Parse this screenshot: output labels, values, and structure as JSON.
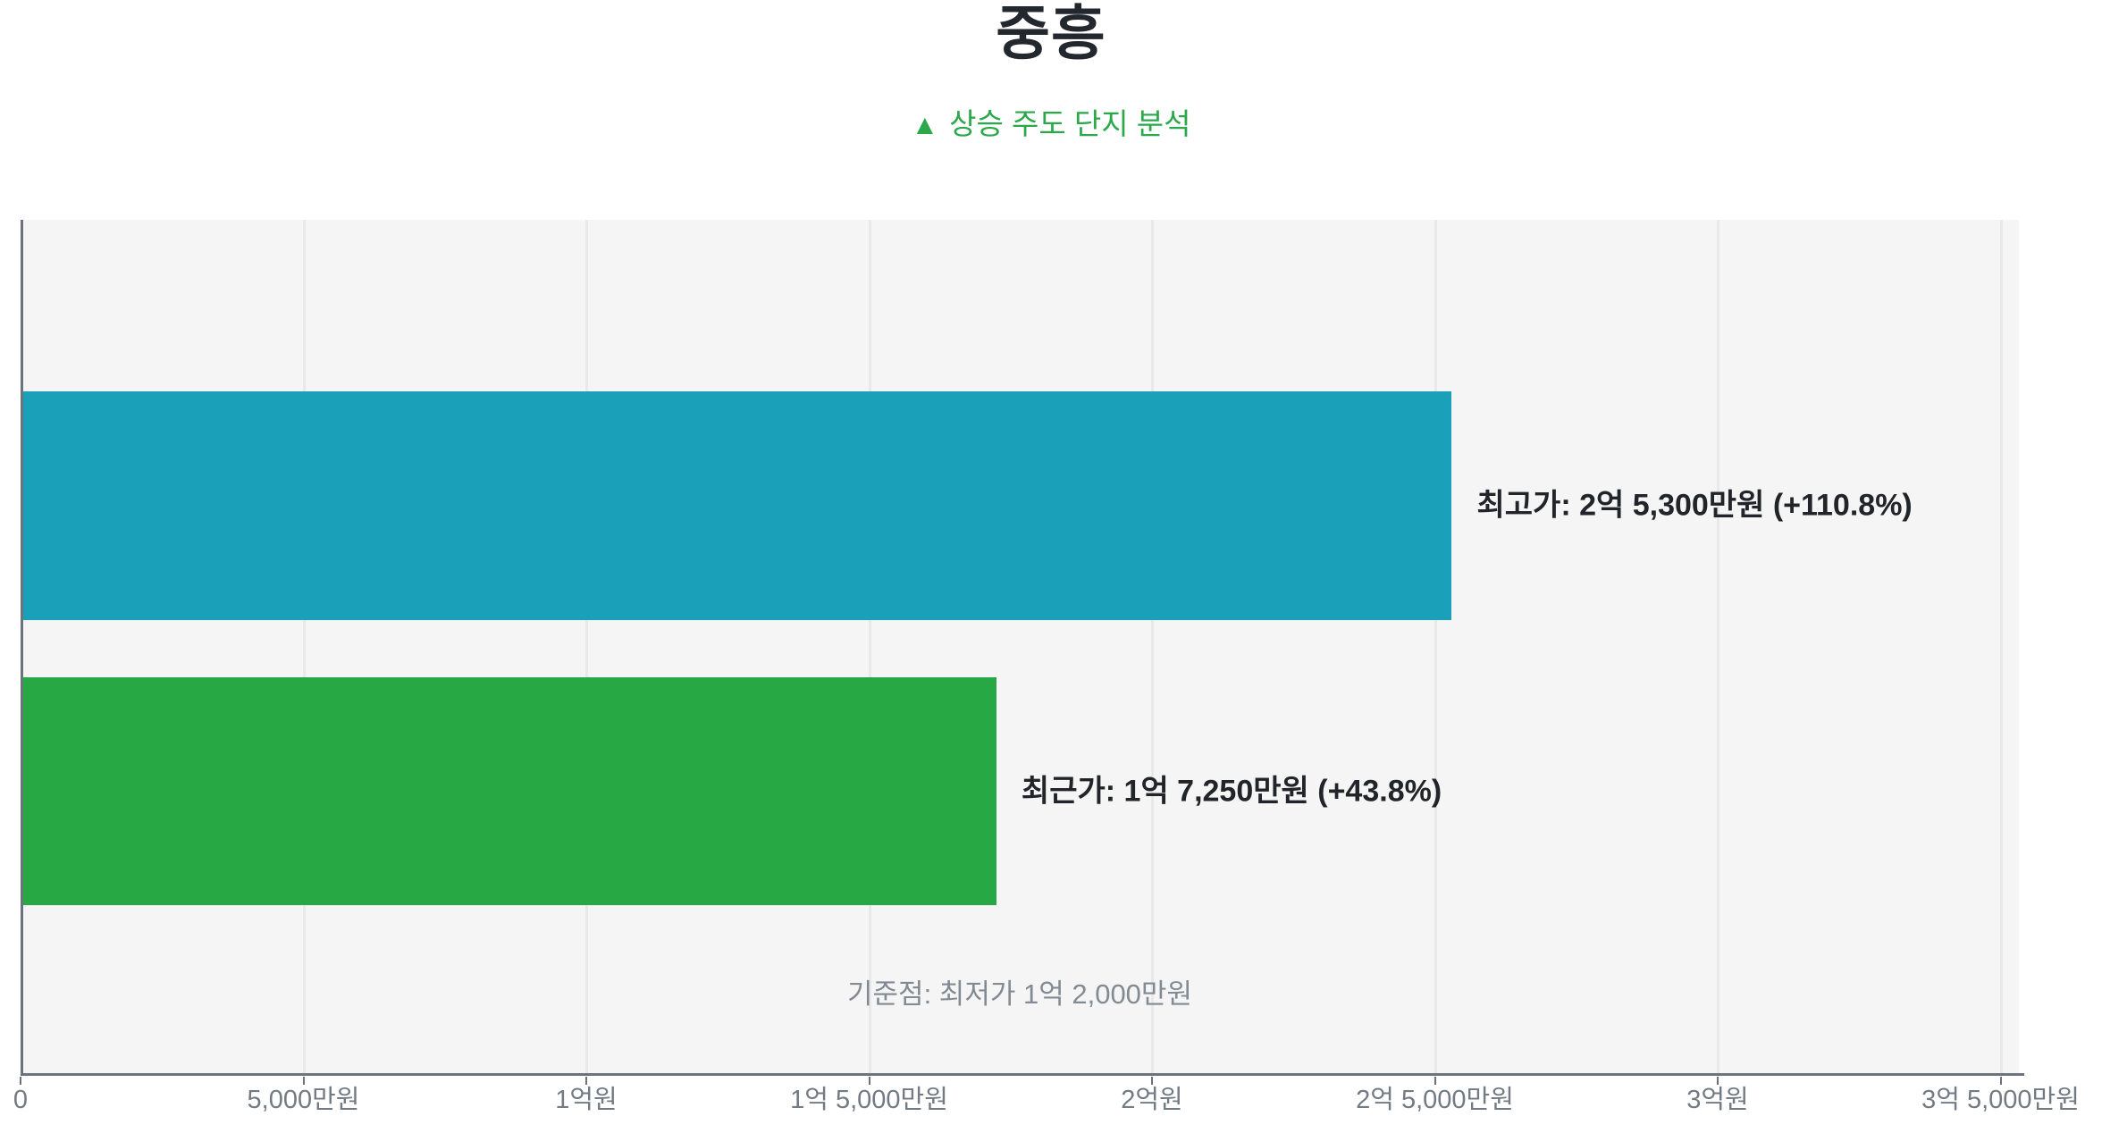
{
  "header": {
    "title": "중흥",
    "subtitle_icon": "▲",
    "subtitle": "상승 주도 단지 분석"
  },
  "colors": {
    "accent_green": "#2ba84a",
    "bar_high": "#1aa0b8",
    "bar_recent": "#28a745",
    "plot_background": "#f5f5f5",
    "text_dark": "#212529",
    "text_muted": "#828a93"
  },
  "chart_data": {
    "type": "bar",
    "orientation": "horizontal",
    "unit": "만원",
    "xlim": [
      0,
      35000
    ],
    "grid": true,
    "bars": [
      {
        "name": "최고가",
        "value": 25300,
        "amount_display": "2억 5,300만원",
        "change_pct": 110.8,
        "label": "최고가: 2억 5,300만원 (+110.8%)",
        "color": "#1aa0b8"
      },
      {
        "name": "최근가",
        "value": 17250,
        "amount_display": "1억 7,250만원",
        "change_pct": 43.8,
        "label": "최근가: 1억 7,250만원 (+43.8%)",
        "color": "#28a745"
      }
    ],
    "baseline_value": 12000,
    "baseline_note": "기준점: 최저가 1억 2,000만원",
    "x_ticks": [
      {
        "value": 0,
        "label": "0"
      },
      {
        "value": 5000,
        "label": "5,000만원"
      },
      {
        "value": 10000,
        "label": "1억원"
      },
      {
        "value": 15000,
        "label": "1억 5,000만원"
      },
      {
        "value": 20000,
        "label": "2억원"
      },
      {
        "value": 25000,
        "label": "2억 5,000만원"
      },
      {
        "value": 30000,
        "label": "3억원"
      },
      {
        "value": 35000,
        "label": "3억 5,000만원"
      }
    ]
  }
}
